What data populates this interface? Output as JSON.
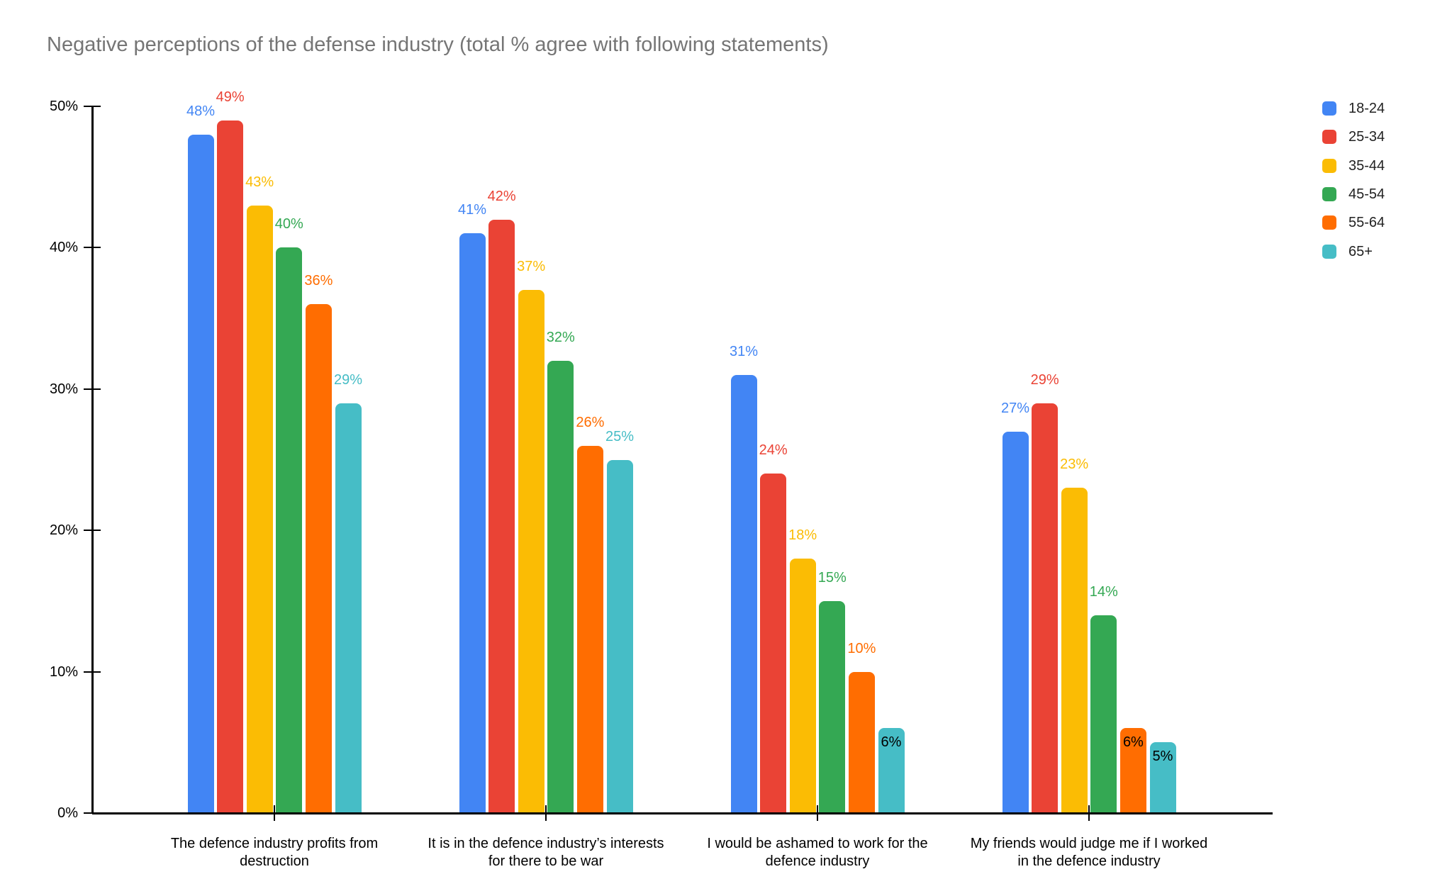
{
  "page": {
    "background": "#ffffff"
  },
  "chart_data": {
    "type": "bar",
    "title": "Negative perceptions of the defense industry (total % agree with following statements)",
    "title_color": "#757575",
    "categories": [
      "The defence industry profits from destruction",
      "It is in the defence industry’s interests for there to be war",
      "I would be ashamed to work for the defence industry",
      "My friends would judge me if I worked in the defence industry"
    ],
    "category_lines": [
      [
        "The defence industry profits from",
        "destruction"
      ],
      [
        "It is in the defence industry’s interests",
        "for there to be war"
      ],
      [
        "I would be ashamed to work for the",
        "defence industry"
      ],
      [
        "My friends would judge me if I worked",
        "in the defence industry"
      ]
    ],
    "series": [
      {
        "name": "18-24",
        "color": "#4285F4",
        "values": [
          48,
          41,
          31,
          27
        ]
      },
      {
        "name": "25-34",
        "color": "#EA4335",
        "values": [
          49,
          42,
          24,
          29
        ]
      },
      {
        "name": "35-44",
        "color": "#FBBC04",
        "values": [
          43,
          37,
          18,
          23
        ]
      },
      {
        "name": "45-54",
        "color": "#34A853",
        "values": [
          40,
          32,
          15,
          14
        ]
      },
      {
        "name": "55-64",
        "color": "#FF6D01",
        "values": [
          36,
          26,
          10,
          6
        ]
      },
      {
        "name": "65+",
        "color": "#46BDC6",
        "values": [
          29,
          25,
          6,
          5
        ]
      }
    ],
    "xlabel": "",
    "ylabel": "",
    "ylim": [
      0,
      50
    ],
    "y_tick_labels": [
      "0%",
      "10%",
      "20%",
      "30%",
      "40%",
      "50%"
    ],
    "y_tick_values": [
      0,
      10,
      20,
      30,
      40,
      50
    ],
    "value_suffix": "%",
    "grid": false,
    "axis_color": "#000000",
    "annotations": {
      "show": true,
      "inside_threshold": 7,
      "inside_color": "#000000"
    },
    "legend_position": "right"
  }
}
